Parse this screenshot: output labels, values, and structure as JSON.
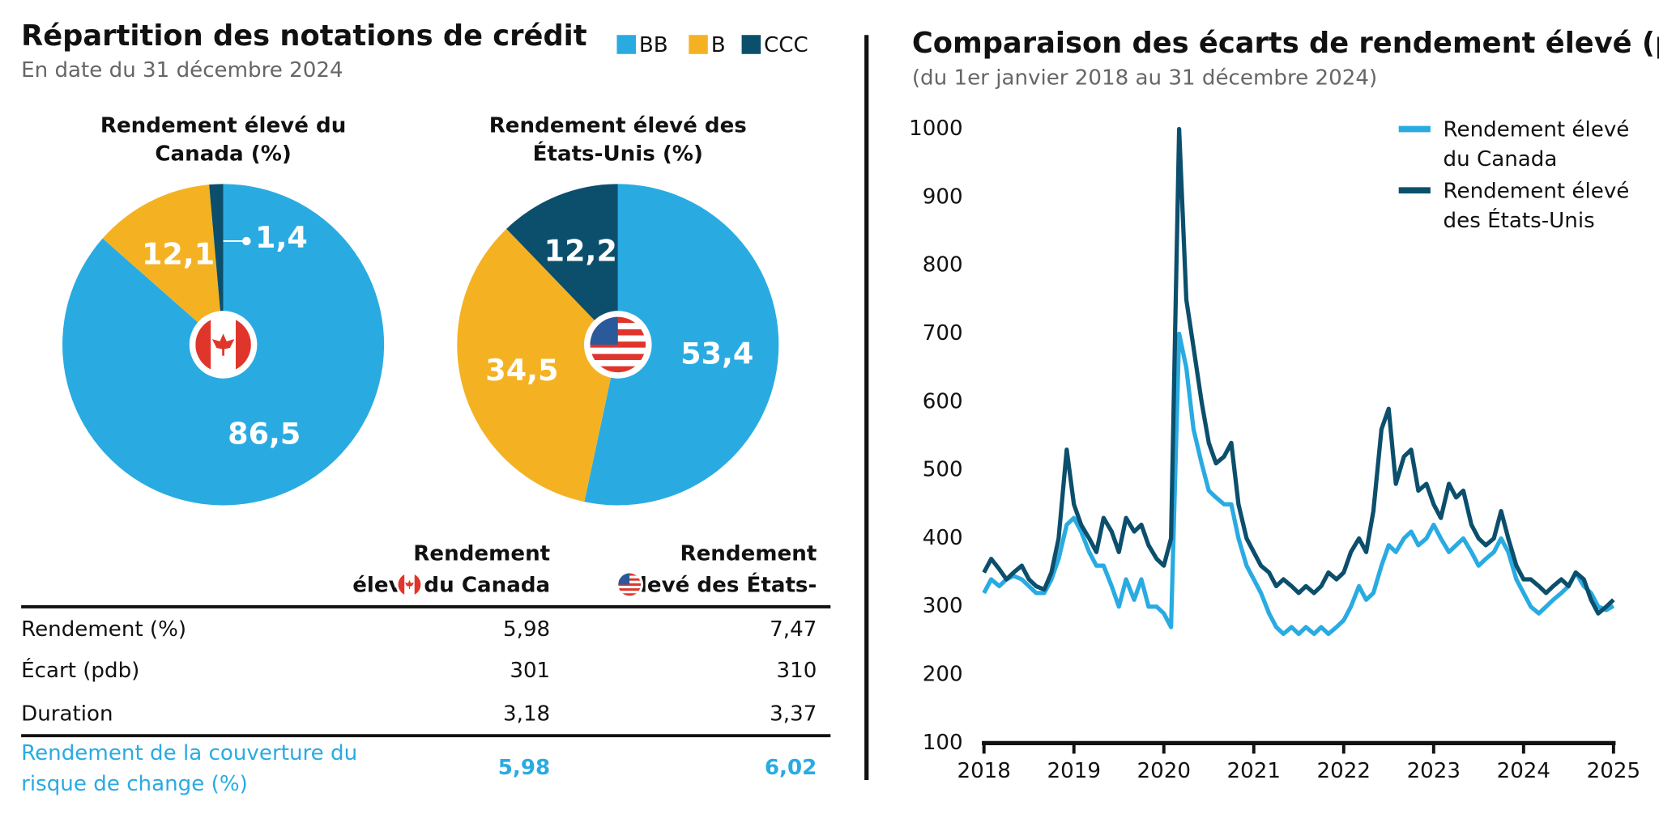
{
  "left": {
    "title": "Répartition des notations de crédit",
    "subtitle": "En date du 31 décembre 2024"
  },
  "chart_data": [
    {
      "type": "pie",
      "title": "Rendement élevé du Canada (%)",
      "categories": [
        "BB",
        "B",
        "CCC"
      ],
      "values": [
        86.5,
        12.1,
        1.4
      ],
      "value_labels": [
        "86,5",
        "12,1",
        "1,4"
      ],
      "colors": [
        "#29abe2",
        "#f4b223",
        "#0b4f6c"
      ]
    },
    {
      "type": "pie",
      "title": "Rendement élevé des États-Unis (%)",
      "categories": [
        "BB",
        "B",
        "CCC"
      ],
      "values": [
        53.4,
        34.5,
        12.2
      ],
      "value_labels": [
        "53,4",
        "34,5",
        "12,2"
      ],
      "colors": [
        "#29abe2",
        "#f4b223",
        "#0b4f6c"
      ]
    },
    {
      "type": "line",
      "title": "Comparaison des écarts de rendement élevé (pdb)",
      "subtitle": "(du 1er janvier 2018 au 31 décembre 2024)",
      "x": [
        2018,
        2018.08,
        2018.17,
        2018.25,
        2018.33,
        2018.42,
        2018.5,
        2018.58,
        2018.67,
        2018.75,
        2018.83,
        2018.92,
        2019,
        2019.08,
        2019.17,
        2019.25,
        2019.33,
        2019.42,
        2019.5,
        2019.58,
        2019.67,
        2019.75,
        2019.83,
        2019.92,
        2020,
        2020.08,
        2020.17,
        2020.25,
        2020.33,
        2020.42,
        2020.5,
        2020.58,
        2020.67,
        2020.75,
        2020.83,
        2020.92,
        2021,
        2021.08,
        2021.17,
        2021.25,
        2021.33,
        2021.42,
        2021.5,
        2021.58,
        2021.67,
        2021.75,
        2021.83,
        2021.92,
        2022,
        2022.08,
        2022.17,
        2022.25,
        2022.33,
        2022.42,
        2022.5,
        2022.58,
        2022.67,
        2022.75,
        2022.83,
        2022.92,
        2023,
        2023.08,
        2023.17,
        2023.25,
        2023.33,
        2023.42,
        2023.5,
        2023.58,
        2023.67,
        2023.75,
        2023.83,
        2023.92,
        2024,
        2024.08,
        2024.17,
        2024.25,
        2024.33,
        2024.42,
        2024.5,
        2024.58,
        2024.67,
        2024.75,
        2024.83,
        2024.92,
        2025
      ],
      "series": [
        {
          "name": "Rendement élevé du Canada",
          "color": "#29abe2",
          "values": [
            320,
            340,
            330,
            340,
            345,
            340,
            330,
            320,
            320,
            340,
            370,
            420,
            430,
            410,
            380,
            360,
            360,
            330,
            300,
            340,
            310,
            340,
            300,
            300,
            290,
            270,
            700,
            650,
            560,
            510,
            470,
            460,
            450,
            450,
            400,
            360,
            340,
            320,
            290,
            270,
            260,
            270,
            260,
            270,
            260,
            270,
            260,
            270,
            280,
            300,
            330,
            310,
            320,
            360,
            390,
            380,
            400,
            410,
            390,
            400,
            420,
            400,
            380,
            390,
            400,
            380,
            360,
            370,
            380,
            400,
            380,
            340,
            320,
            300,
            290,
            300,
            310,
            320,
            330,
            350,
            330,
            320,
            300,
            295,
            301
          ]
        },
        {
          "name": "Rendement élevé des États-Unis",
          "color": "#0b4f6c",
          "values": [
            350,
            370,
            355,
            340,
            350,
            360,
            340,
            330,
            325,
            350,
            400,
            530,
            450,
            420,
            400,
            380,
            430,
            410,
            380,
            430,
            410,
            420,
            390,
            370,
            360,
            400,
            1000,
            750,
            680,
            600,
            540,
            510,
            520,
            540,
            450,
            400,
            380,
            360,
            350,
            330,
            340,
            330,
            320,
            330,
            320,
            330,
            350,
            340,
            350,
            380,
            400,
            380,
            440,
            560,
            590,
            480,
            520,
            530,
            470,
            480,
            450,
            430,
            480,
            460,
            470,
            420,
            400,
            390,
            400,
            440,
            400,
            360,
            340,
            340,
            330,
            320,
            330,
            340,
            330,
            350,
            340,
            310,
            290,
            300,
            310
          ]
        }
      ],
      "xlim": [
        2018,
        2025
      ],
      "xticks": [
        2018,
        2019,
        2020,
        2021,
        2022,
        2023,
        2024,
        2025
      ],
      "ylim": [
        100,
        1000
      ],
      "yticks": [
        100,
        200,
        300,
        400,
        500,
        600,
        700,
        800,
        900,
        1000
      ],
      "grid": false,
      "legend": "upper right"
    }
  ],
  "table": {
    "columns": [
      "Rendement élevé du Canada",
      "Rendement élevé des États-Unis"
    ],
    "rows": [
      [
        "Rendement (%)",
        "5,98",
        "7,47"
      ],
      [
        "Écart (pdb)",
        "301",
        "310"
      ],
      [
        "Duration",
        "3,18",
        "3,37"
      ],
      [
        "Rendement de la couverture du risque de change (%)",
        "5,98",
        "6,02"
      ]
    ]
  }
}
